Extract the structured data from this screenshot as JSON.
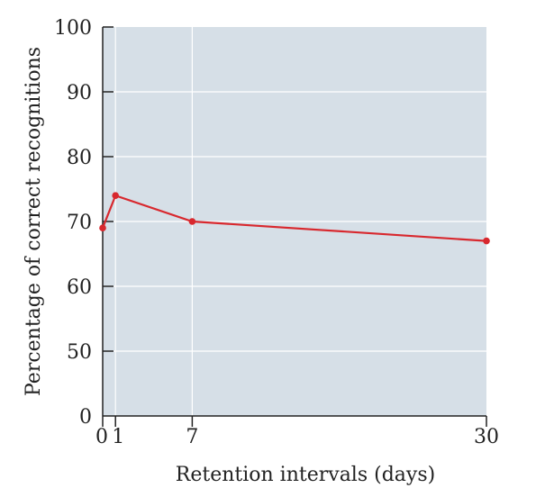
{
  "chart_data": {
    "type": "line",
    "title": "",
    "xlabel": "Retention intervals (days)",
    "ylabel": "Percentage of correct recognitions",
    "x_ticks": [
      0,
      1,
      7,
      30
    ],
    "x_tick_labels": [
      "0",
      "1",
      "7",
      "30"
    ],
    "y_ticks": [
      50,
      60,
      70,
      80,
      90,
      100
    ],
    "y_tick_labels": [
      "50",
      "60",
      "70",
      "80",
      "90",
      "100"
    ],
    "y_axis_break": {
      "label": "0",
      "note": "axis starts at 0 with a break below 50"
    },
    "xlim": [
      0,
      30
    ],
    "ylim": [
      40,
      100
    ],
    "grid": true,
    "series": [
      {
        "x": [
          0,
          1,
          7,
          30
        ],
        "values": [
          69,
          74,
          70,
          67
        ]
      }
    ]
  },
  "colors": {
    "plot_background": "#d6dfe7",
    "grid": "#ffffff",
    "line": "#d8282e",
    "axis": "#222222"
  }
}
